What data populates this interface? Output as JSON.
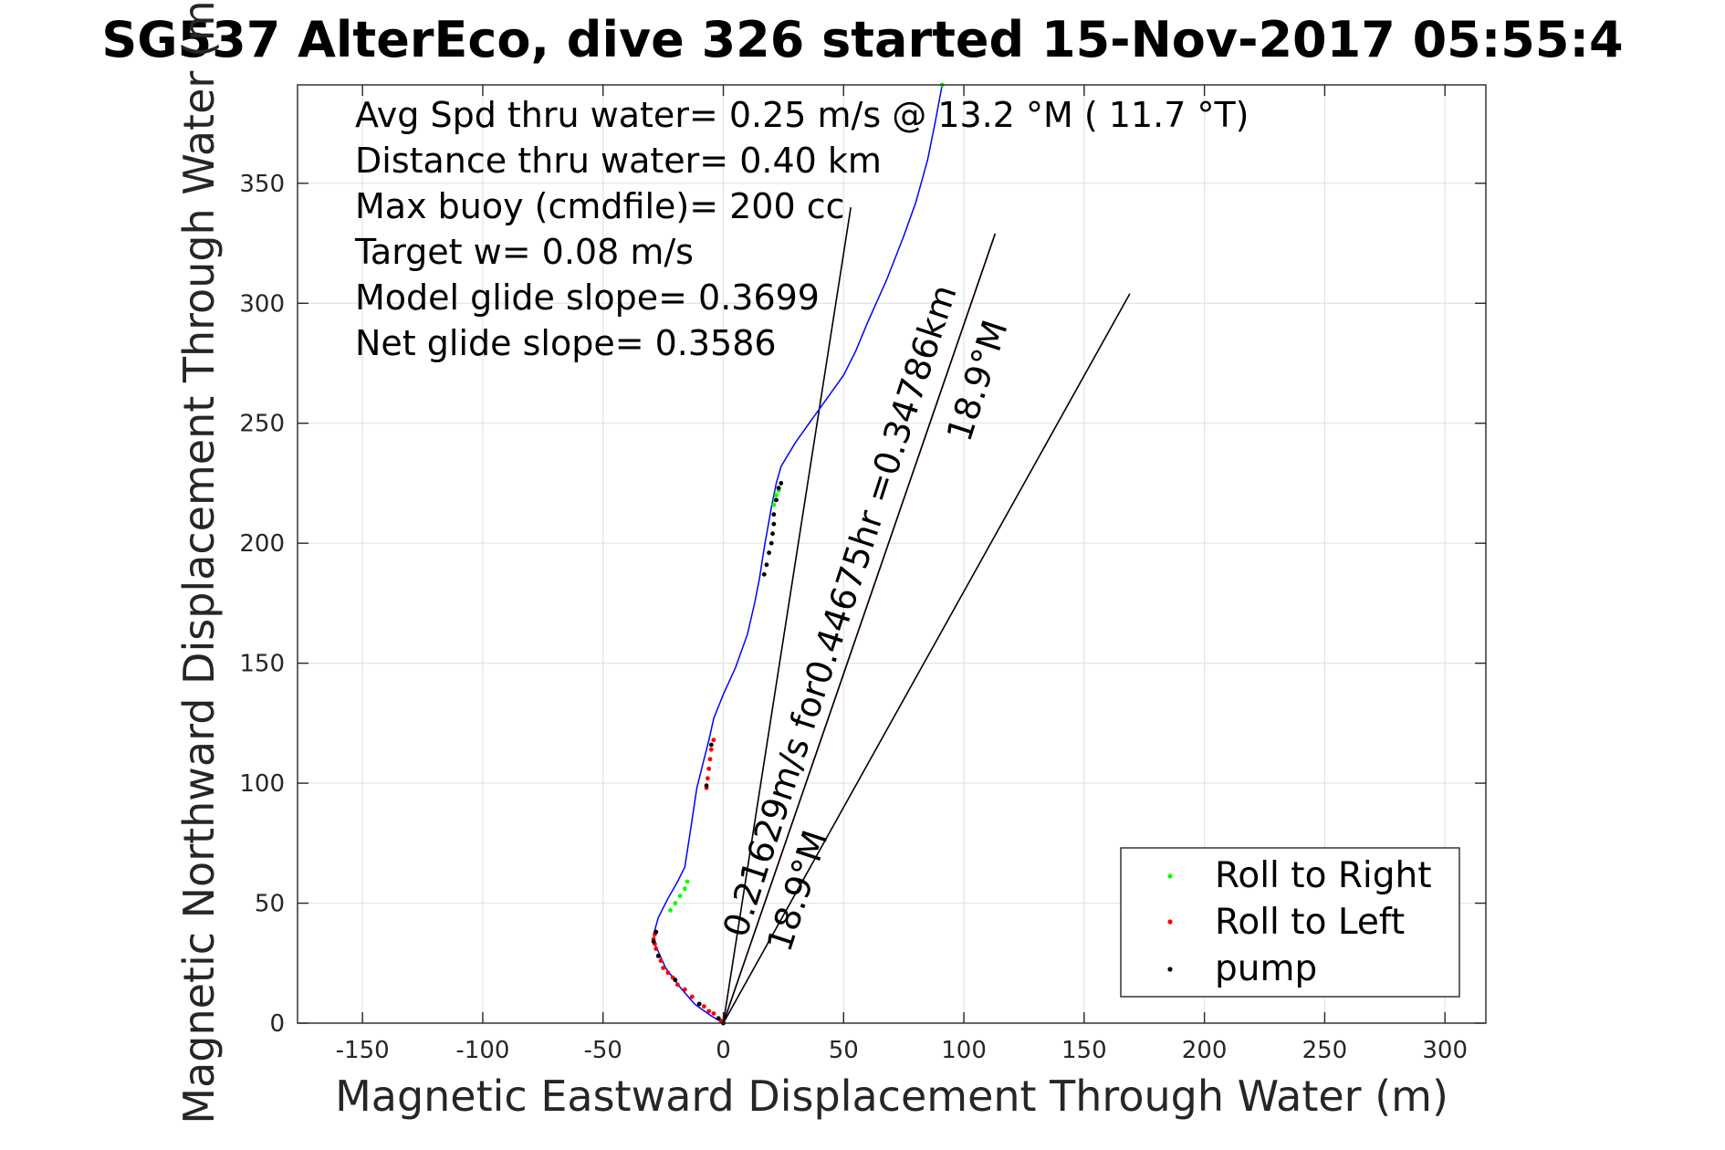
{
  "chart_data": {
    "type": "line",
    "title": "SG537 AlterEco, dive 326 started 15-Nov-2017 05:55:4",
    "xlabel": "Magnetic Eastward Displacement Through Water (m)",
    "ylabel": "Magnetic Northward Displacement Through Water (m)",
    "xlim": [
      -177,
      317
    ],
    "ylim": [
      0,
      391
    ],
    "xticks": [
      -150,
      -100,
      -50,
      0,
      50,
      100,
      150,
      200,
      250,
      300
    ],
    "yticks": [
      0,
      50,
      100,
      150,
      200,
      250,
      300,
      350
    ],
    "grid": true,
    "legend_position": "bottom-right",
    "annotations": [
      "Avg Spd thru water=  0.25 m/s @  13.2 °M ( 11.7 °T)",
      "Distance thru water=  0.40 km",
      "Max buoy (cmdfile)= 200 cc",
      "Target w= 0.08 m/s",
      "Model glide slope= 0.3699",
      "Net glide slope= 0.3586"
    ],
    "line_labels": [
      "0.21629m/s for0.44675hr =0.34786km",
      "18.9°M",
      "18.9°M"
    ],
    "track": {
      "color": "#0000ff",
      "x": [
        0,
        -5,
        -12,
        -18,
        -24,
        -28,
        -29,
        -27,
        -23,
        -19,
        -16,
        -14,
        -11,
        -8,
        -6,
        -4,
        0,
        5,
        10,
        13,
        15,
        17,
        20,
        21,
        22,
        24,
        30,
        40,
        50,
        55,
        60,
        68,
        75,
        80,
        85,
        88,
        91
      ],
      "y": [
        0,
        3,
        8,
        15,
        23,
        32,
        37,
        44,
        52,
        59,
        65,
        78,
        98,
        110,
        118,
        127,
        137,
        148,
        162,
        175,
        185,
        198,
        215,
        220,
        225,
        232,
        242,
        256,
        270,
        280,
        292,
        310,
        328,
        342,
        360,
        375,
        391
      ]
    },
    "series": [
      {
        "name": "Roll to Right",
        "color": "#00ff00",
        "marker": "dot",
        "x": [
          -22,
          -20,
          -18,
          -16,
          -15,
          21,
          21.5,
          22,
          23,
          91
        ],
        "y": [
          47,
          50,
          53,
          56,
          59,
          216,
          218,
          220,
          222,
          391
        ]
      },
      {
        "name": "Roll to Left",
        "color": "#ff0000",
        "marker": "dot",
        "x": [
          0,
          -1,
          -2,
          -4,
          -6,
          -8,
          -10,
          -13,
          -16,
          -19,
          -21,
          -23,
          -25,
          -26,
          -27,
          -28,
          -28.5,
          -29,
          -28.5,
          -28,
          -7,
          -6.5,
          -6,
          -5.5,
          -5,
          -4
        ],
        "y": [
          0,
          1,
          2,
          4,
          5,
          7,
          8,
          11,
          14,
          16,
          19,
          21,
          23,
          26,
          28,
          31,
          33,
          35,
          37,
          38,
          98,
          102,
          106,
          110,
          114,
          118
        ]
      },
      {
        "name": "pump",
        "color": "#000000",
        "marker": "dot",
        "x": [
          0,
          -2,
          -10,
          -20,
          -27,
          -29,
          -28,
          -7,
          -5,
          17,
          18,
          19,
          20,
          20.5,
          21,
          21,
          22,
          23,
          24
        ],
        "y": [
          0,
          2,
          8,
          18,
          28,
          34,
          38,
          99,
          116,
          187,
          191,
          196,
          200,
          204,
          208,
          212,
          218,
          223,
          225
        ]
      }
    ],
    "reference_lines": [
      {
        "color": "#000000",
        "x": [
          0,
          53
        ],
        "y": [
          0,
          340
        ]
      },
      {
        "color": "#000000",
        "x": [
          0,
          169
        ],
        "y": [
          0,
          304
        ]
      },
      {
        "color": "#ff00ff",
        "x": [
          0,
          113
        ],
        "y": [
          0,
          329
        ]
      },
      {
        "color": "#000000",
        "x": [
          0,
          113
        ],
        "y": [
          0,
          329
        ]
      }
    ]
  }
}
